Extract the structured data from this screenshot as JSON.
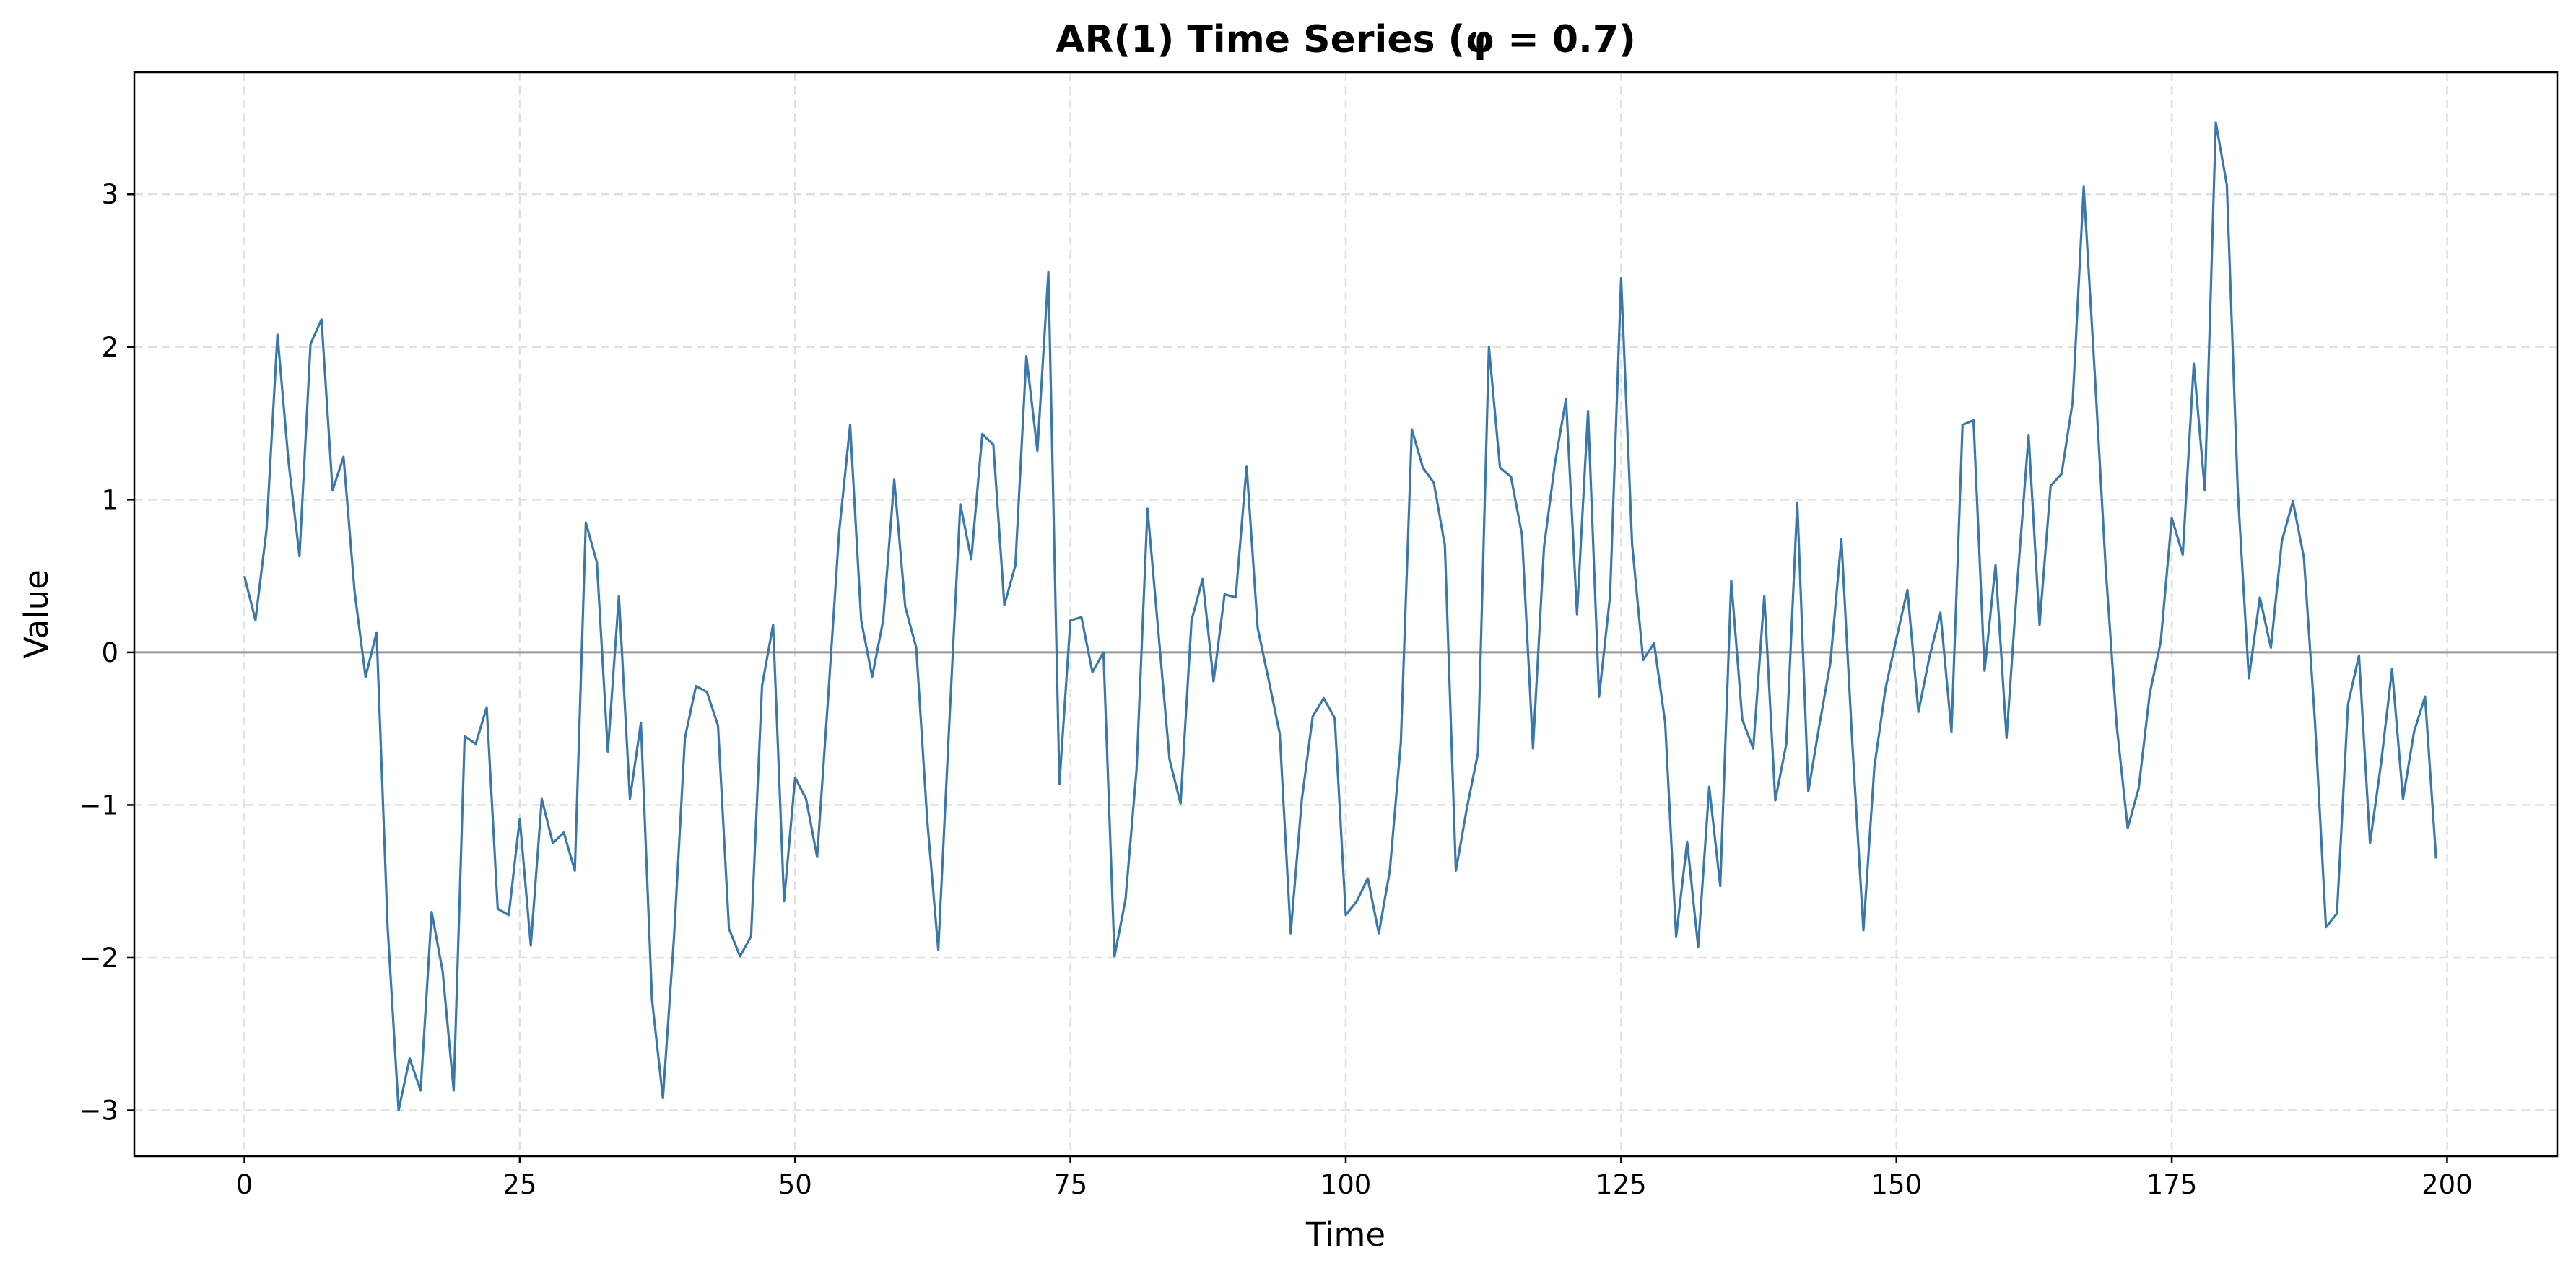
{
  "chart_data": {
    "type": "line",
    "title": "AR(1) Time Series (φ = 0.7)",
    "xlabel": "Time",
    "ylabel": "Value",
    "xlim": [
      -10,
      210
    ],
    "ylim": [
      -3.3,
      3.8
    ],
    "xticks": [
      0,
      25,
      50,
      75,
      100,
      125,
      150,
      175,
      200
    ],
    "xtick_labels": [
      "0",
      "25",
      "50",
      "75",
      "100",
      "125",
      "150",
      "175",
      "200"
    ],
    "yticks": [
      -3,
      -2,
      -1,
      0,
      1,
      2,
      3
    ],
    "ytick_labels": [
      "−3",
      "−2",
      "−1",
      "0",
      "1",
      "2",
      "3"
    ],
    "grid": true,
    "reference_line_y": 0,
    "series_color": "#3a78ab",
    "series": [
      {
        "x": [
          0,
          1,
          2,
          3,
          4,
          5,
          6,
          7,
          8,
          9,
          10,
          11,
          12,
          13,
          14,
          15,
          16,
          17,
          18,
          19,
          20,
          21,
          22,
          23,
          24,
          25,
          26,
          27,
          28,
          29,
          30,
          31,
          32,
          33,
          34,
          35,
          36,
          37,
          38,
          39,
          40,
          41,
          42,
          43,
          44,
          45,
          46,
          47,
          48,
          49,
          50,
          51,
          52,
          53,
          54,
          55,
          56,
          57,
          58,
          59,
          60,
          61,
          62,
          63,
          64,
          65,
          66,
          67,
          68,
          69,
          70,
          71,
          72,
          73,
          74,
          75,
          76,
          77,
          78,
          79,
          80,
          81,
          82,
          83,
          84,
          85,
          86,
          87,
          88,
          89,
          90,
          91,
          92,
          93,
          94,
          95,
          96,
          97,
          98,
          99,
          100,
          101,
          102,
          103,
          104,
          105,
          106,
          107,
          108,
          109,
          110,
          111,
          112,
          113,
          114,
          115,
          116,
          117,
          118,
          119,
          120,
          121,
          122,
          123,
          124,
          125,
          126,
          127,
          128,
          129,
          130,
          131,
          132,
          133,
          134,
          135,
          136,
          137,
          138,
          139,
          140,
          141,
          142,
          143,
          144,
          145,
          146,
          147,
          148,
          149,
          150,
          151,
          152,
          153,
          154,
          155,
          156,
          157,
          158,
          159,
          160,
          161,
          162,
          163,
          164,
          165,
          166,
          167,
          168,
          169,
          170,
          171,
          172,
          173,
          174,
          175,
          176,
          177,
          178,
          179,
          180,
          181,
          182,
          183,
          184,
          185,
          186,
          187,
          188,
          189,
          190,
          191,
          192,
          193,
          194,
          195,
          196,
          197,
          198,
          199
        ],
        "y": [
          0.5,
          0.21,
          0.8,
          2.08,
          1.25,
          0.63,
          2.02,
          2.18,
          1.06,
          1.28,
          0.4,
          -0.16,
          0.13,
          -1.8,
          -3.0,
          -2.66,
          -2.87,
          -1.7,
          -2.09,
          -2.87,
          -0.55,
          -0.6,
          -0.36,
          -1.68,
          -1.72,
          -1.09,
          -1.92,
          -0.96,
          -1.25,
          -1.18,
          -1.43,
          0.85,
          0.59,
          -0.65,
          0.37,
          -0.96,
          -0.46,
          -2.27,
          -2.92,
          -1.87,
          -0.56,
          -0.22,
          -0.26,
          -0.48,
          -1.81,
          -1.99,
          -1.86,
          -0.22,
          0.18,
          -1.63,
          -0.82,
          -0.96,
          -1.34,
          -0.3,
          0.79,
          1.49,
          0.21,
          -0.16,
          0.21,
          1.13,
          0.3,
          0.03,
          -1.1,
          -1.95,
          -0.47,
          0.97,
          0.61,
          1.43,
          1.36,
          0.31,
          0.57,
          1.94,
          1.32,
          2.49,
          -0.86,
          0.21,
          0.23,
          -0.13,
          0.0,
          -1.99,
          -1.62,
          -0.77,
          0.94,
          0.12,
          -0.7,
          -0.99,
          0.21,
          0.48,
          -0.19,
          0.38,
          0.36,
          1.22,
          0.16,
          -0.18,
          -0.53,
          -1.84,
          -0.97,
          -0.42,
          -0.3,
          -0.43,
          -1.72,
          -1.63,
          -1.48,
          -1.84,
          -1.43,
          -0.59,
          1.46,
          1.21,
          1.11,
          0.7,
          -1.43,
          -1.02,
          -0.66,
          2.0,
          1.21,
          1.15,
          0.77,
          -0.63,
          0.69,
          1.24,
          1.66,
          0.25,
          1.58,
          -0.29,
          0.37,
          2.45,
          0.71,
          -0.05,
          0.06,
          -0.46,
          -1.86,
          -1.24,
          -1.93,
          -0.88,
          -1.53,
          0.47,
          -0.44,
          -0.63,
          0.37,
          -0.97,
          -0.6,
          0.98,
          -0.91,
          -0.48,
          -0.07,
          0.74,
          -0.6,
          -1.82,
          -0.75,
          -0.24,
          0.09,
          0.41,
          -0.39,
          -0.03,
          0.26,
          -0.52,
          1.49,
          1.52,
          -0.12,
          0.57,
          -0.56,
          0.48,
          1.42,
          0.18,
          1.09,
          1.17,
          1.64,
          3.05,
          1.84,
          0.55,
          -0.48,
          -1.15,
          -0.89,
          -0.27,
          0.07,
          0.88,
          0.64,
          1.89,
          1.06,
          3.47,
          3.06,
          1.05,
          -0.17,
          0.36,
          0.03,
          0.73,
          0.99,
          0.62,
          -0.45,
          -1.8,
          -1.71,
          -0.34,
          -0.02,
          -1.25,
          -0.73,
          -0.11,
          -0.96,
          -0.52,
          -0.29,
          -1.35
        ]
      }
    ]
  }
}
